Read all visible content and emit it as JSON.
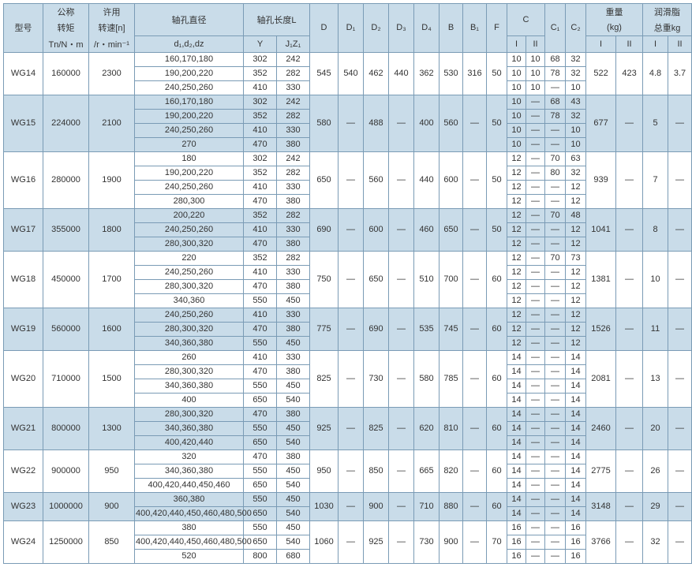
{
  "headers": {
    "model": "型号",
    "torque_line1": "公称",
    "torque_line2": "转矩",
    "torque_unit": "Tn/N・m",
    "speed_line1": "许用",
    "speed_line2": "转速[n]",
    "speed_unit": "/r・min⁻¹",
    "shaft_diam": "轴孔直径",
    "shaft_diam_sub": "d₁,d₂,dz",
    "shaft_len": "轴孔长度L",
    "shaft_len_Y": "Y",
    "shaft_len_J": "J₁Z₁",
    "D": "D",
    "D1": "D₁",
    "D2": "D₂",
    "D3": "D₃",
    "D4": "D₄",
    "B": "B",
    "B1": "B₁",
    "F": "F",
    "C": "C",
    "CI": "I",
    "CII": "II",
    "C1": "C₁",
    "C2": "C₂",
    "weight": "重量",
    "weight_unit": "(kg)",
    "wI": "I",
    "wII": "II",
    "grease_line1": "润滑脂",
    "grease_line2": "总重kg",
    "gI": "I",
    "gII": "II"
  },
  "rows": [
    {
      "model": "WG14",
      "torque": "160000",
      "speed": "2300",
      "alt": false,
      "sub": [
        {
          "d": "160,170,180",
          "Y": "302",
          "J": "242"
        },
        {
          "d": "190,200,220",
          "Y": "352",
          "J": "282"
        },
        {
          "d": "240,250,260",
          "Y": "410",
          "J": "330"
        }
      ],
      "D": "545",
      "D1": "540",
      "D2": "462",
      "D3": "440",
      "D4": "362",
      "B": "530",
      "B1": "316",
      "F": "50",
      "Csub": [
        [
          "10",
          "10",
          "68",
          "32"
        ],
        [
          "10",
          "10",
          "78",
          "32"
        ],
        [
          "10",
          "10",
          "—",
          "10"
        ]
      ],
      "wI": "522",
      "wII": "423",
      "gI": "4.8",
      "gII": "3.7"
    },
    {
      "model": "WG15",
      "torque": "224000",
      "speed": "2100",
      "alt": true,
      "sub": [
        {
          "d": "160,170,180",
          "Y": "302",
          "J": "242"
        },
        {
          "d": "190,200,220",
          "Y": "352",
          "J": "282"
        },
        {
          "d": "240,250,260",
          "Y": "410",
          "J": "330"
        },
        {
          "d": "270",
          "Y": "470",
          "J": "380"
        }
      ],
      "D": "580",
      "D1": "—",
      "D2": "488",
      "D3": "—",
      "D4": "400",
      "B": "560",
      "B1": "—",
      "F": "50",
      "Csub": [
        [
          "10",
          "—",
          "68",
          "43"
        ],
        [
          "10",
          "—",
          "78",
          "32"
        ],
        [
          "10",
          "—",
          "—",
          "10"
        ],
        [
          "10",
          "—",
          "—",
          "10"
        ]
      ],
      "wI": "677",
      "wII": "—",
      "gI": "5",
      "gII": "—"
    },
    {
      "model": "WG16",
      "torque": "280000",
      "speed": "1900",
      "alt": false,
      "sub": [
        {
          "d": "180",
          "Y": "302",
          "J": "242"
        },
        {
          "d": "190,200,220",
          "Y": "352",
          "J": "282"
        },
        {
          "d": "240,250,260",
          "Y": "410",
          "J": "330"
        },
        {
          "d": "280,300",
          "Y": "470",
          "J": "380"
        }
      ],
      "D": "650",
      "D1": "—",
      "D2": "560",
      "D3": "—",
      "D4": "440",
      "B": "600",
      "B1": "—",
      "F": "50",
      "Csub": [
        [
          "12",
          "—",
          "70",
          "63"
        ],
        [
          "12",
          "—",
          "80",
          "32"
        ],
        [
          "12",
          "—",
          "—",
          "12"
        ],
        [
          "12",
          "—",
          "—",
          "12"
        ]
      ],
      "wI": "939",
      "wII": "—",
      "gI": "7",
      "gII": "—"
    },
    {
      "model": "WG17",
      "torque": "355000",
      "speed": "1800",
      "alt": true,
      "sub": [
        {
          "d": "200,220",
          "Y": "352",
          "J": "282"
        },
        {
          "d": "240,250,260",
          "Y": "410",
          "J": "330"
        },
        {
          "d": "280,300,320",
          "Y": "470",
          "J": "380"
        }
      ],
      "D": "690",
      "D1": "—",
      "D2": "600",
      "D3": "—",
      "D4": "460",
      "B": "650",
      "B1": "—",
      "F": "50",
      "Csub": [
        [
          "12",
          "—",
          "70",
          "48"
        ],
        [
          "12",
          "—",
          "—",
          "12"
        ],
        [
          "12",
          "—",
          "—",
          "12"
        ]
      ],
      "wI": "1041",
      "wII": "—",
      "gI": "8",
      "gII": "—"
    },
    {
      "model": "WG18",
      "torque": "450000",
      "speed": "1700",
      "alt": false,
      "sub": [
        {
          "d": "220",
          "Y": "352",
          "J": "282"
        },
        {
          "d": "240,250,260",
          "Y": "410",
          "J": "330"
        },
        {
          "d": "280,300,320",
          "Y": "470",
          "J": "380"
        },
        {
          "d": "340,360",
          "Y": "550",
          "J": "450"
        }
      ],
      "D": "750",
      "D1": "—",
      "D2": "650",
      "D3": "—",
      "D4": "510",
      "B": "700",
      "B1": "—",
      "F": "60",
      "Csub": [
        [
          "12",
          "—",
          "70",
          "73"
        ],
        [
          "12",
          "—",
          "—",
          "12"
        ],
        [
          "12",
          "—",
          "—",
          "12"
        ],
        [
          "12",
          "—",
          "—",
          "12"
        ]
      ],
      "wI": "1381",
      "wII": "—",
      "gI": "10",
      "gII": "—"
    },
    {
      "model": "WG19",
      "torque": "560000",
      "speed": "1600",
      "alt": true,
      "sub": [
        {
          "d": "240,250,260",
          "Y": "410",
          "J": "330"
        },
        {
          "d": "280,300,320",
          "Y": "470",
          "J": "380"
        },
        {
          "d": "340,360,380",
          "Y": "550",
          "J": "450"
        }
      ],
      "D": "775",
      "D1": "—",
      "D2": "690",
      "D3": "—",
      "D4": "535",
      "B": "745",
      "B1": "—",
      "F": "60",
      "Csub": [
        [
          "12",
          "—",
          "—",
          "12"
        ],
        [
          "12",
          "—",
          "—",
          "12"
        ],
        [
          "12",
          "—",
          "—",
          "12"
        ]
      ],
      "wI": "1526",
      "wII": "—",
      "gI": "11",
      "gII": "—"
    },
    {
      "model": "WG20",
      "torque": "710000",
      "speed": "1500",
      "alt": false,
      "sub": [
        {
          "d": "260",
          "Y": "410",
          "J": "330"
        },
        {
          "d": "280,300,320",
          "Y": "470",
          "J": "380"
        },
        {
          "d": "340,360,380",
          "Y": "550",
          "J": "450"
        },
        {
          "d": "400",
          "Y": "650",
          "J": "540"
        }
      ],
      "D": "825",
      "D1": "—",
      "D2": "730",
      "D3": "—",
      "D4": "580",
      "B": "785",
      "B1": "—",
      "F": "60",
      "Csub": [
        [
          "14",
          "—",
          "—",
          "14"
        ],
        [
          "14",
          "—",
          "—",
          "14"
        ],
        [
          "14",
          "—",
          "—",
          "14"
        ],
        [
          "14",
          "—",
          "—",
          "14"
        ]
      ],
      "wI": "2081",
      "wII": "—",
      "gI": "13",
      "gII": "—"
    },
    {
      "model": "WG21",
      "torque": "800000",
      "speed": "1300",
      "alt": true,
      "sub": [
        {
          "d": "280,300,320",
          "Y": "470",
          "J": "380"
        },
        {
          "d": "340,360,380",
          "Y": "550",
          "J": "450"
        },
        {
          "d": "400,420,440",
          "Y": "650",
          "J": "540"
        }
      ],
      "D": "925",
      "D1": "—",
      "D2": "825",
      "D3": "—",
      "D4": "620",
      "B": "810",
      "B1": "—",
      "F": "60",
      "Csub": [
        [
          "14",
          "—",
          "—",
          "14"
        ],
        [
          "14",
          "—",
          "—",
          "14"
        ],
        [
          "14",
          "—",
          "—",
          "14"
        ]
      ],
      "wI": "2460",
      "wII": "—",
      "gI": "20",
      "gII": "—"
    },
    {
      "model": "WG22",
      "torque": "900000",
      "speed": "950",
      "alt": false,
      "sub": [
        {
          "d": "320",
          "Y": "470",
          "J": "380"
        },
        {
          "d": "340,360,380",
          "Y": "550",
          "J": "450"
        },
        {
          "d": "400,420,440,450,460",
          "Y": "650",
          "J": "540"
        }
      ],
      "D": "950",
      "D1": "—",
      "D2": "850",
      "D3": "—",
      "D4": "665",
      "B": "820",
      "B1": "—",
      "F": "60",
      "Csub": [
        [
          "14",
          "—",
          "—",
          "14"
        ],
        [
          "14",
          "—",
          "—",
          "14"
        ],
        [
          "14",
          "—",
          "—",
          "14"
        ]
      ],
      "wI": "2775",
      "wII": "—",
      "gI": "26",
      "gII": "—"
    },
    {
      "model": "WG23",
      "torque": "1000000",
      "speed": "900",
      "alt": true,
      "sub": [
        {
          "d": "360,380",
          "Y": "550",
          "J": "450"
        },
        {
          "d": "400,420,440,450,460,480,500",
          "Y": "650",
          "J": "540"
        }
      ],
      "D": "1030",
      "D1": "—",
      "D2": "900",
      "D3": "—",
      "D4": "710",
      "B": "880",
      "B1": "—",
      "F": "60",
      "Csub": [
        [
          "14",
          "—",
          "—",
          "14"
        ],
        [
          "14",
          "—",
          "—",
          "14"
        ]
      ],
      "wI": "3148",
      "wII": "—",
      "gI": "29",
      "gII": "—"
    },
    {
      "model": "WG24",
      "torque": "1250000",
      "speed": "850",
      "alt": false,
      "sub": [
        {
          "d": "380",
          "Y": "550",
          "J": "450"
        },
        {
          "d": "400,420,440,450,460,480,500",
          "Y": "650",
          "J": "540"
        },
        {
          "d": "520",
          "Y": "800",
          "J": "680"
        }
      ],
      "D": "1060",
      "D1": "—",
      "D2": "925",
      "D3": "—",
      "D4": "730",
      "B": "900",
      "B1": "—",
      "F": "70",
      "Csub": [
        [
          "16",
          "—",
          "—",
          "16"
        ],
        [
          "16",
          "—",
          "—",
          "16"
        ],
        [
          "16",
          "—",
          "—",
          "16"
        ]
      ],
      "wI": "3766",
      "wII": "—",
      "gI": "32",
      "gII": "—"
    }
  ]
}
